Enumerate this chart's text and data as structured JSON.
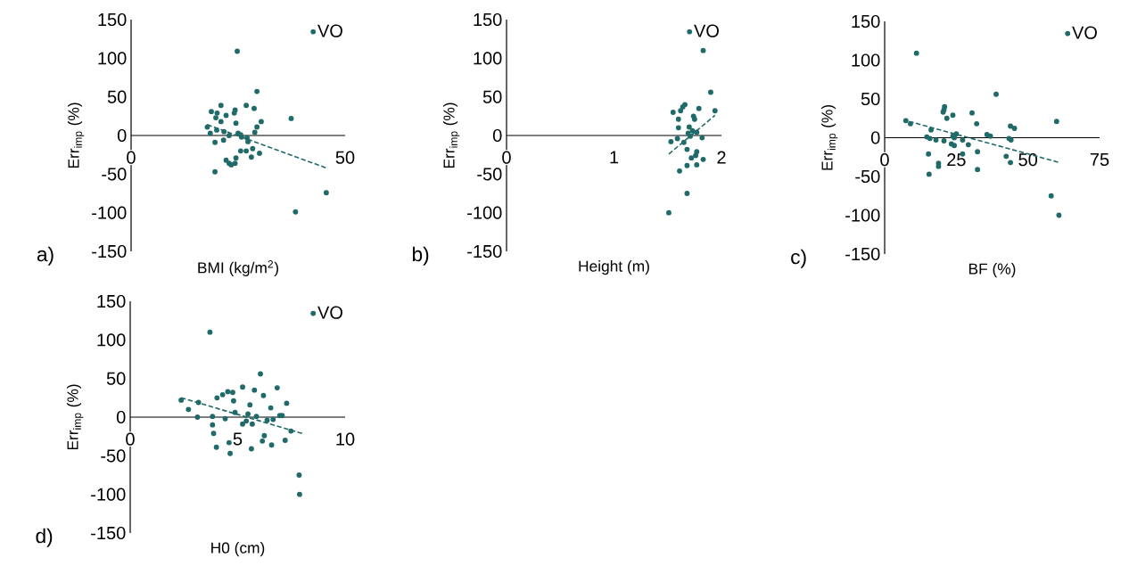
{
  "chart_data": [
    {
      "type": "scatter",
      "xlabel": "BMI (kg/m$^{2}$)",
      "ylabel": "Err$_{imp}$ (%)",
      "xlim": [
        0,
        50
      ],
      "xticks": [
        0,
        50
      ],
      "ylim": [
        -150,
        150
      ],
      "yticks": [
        -150,
        -100,
        -50,
        0,
        50,
        100,
        150
      ],
      "legend": "top right",
      "annotations": [
        "a)"
      ],
      "series": [
        {
          "name": "VO",
          "marker": "circle",
          "color": "#206a6a",
          "x": [
            24.8,
            29.4,
            18.75,
            20.1,
            21.0,
            22.2,
            24.1,
            24.3,
            19.8,
            21.0,
            24.5,
            26.9,
            28.75,
            30.4,
            29.4,
            37.4,
            17.8,
            18.5,
            20.0,
            21.7,
            22.9,
            25.0,
            25.6,
            25.8,
            27.1,
            28.9,
            21.6,
            19.6,
            27.3,
            25.6,
            26.9,
            28.4,
            30.0,
            28.1,
            24.5,
            22.2,
            22.9,
            23.4,
            24.3,
            19.6,
            45.6,
            38.4
          ],
          "values": [
            109,
            57,
            31,
            29,
            39,
            26,
            29,
            33,
            23,
            18,
            16,
            39,
            35,
            18,
            11,
            22,
            11,
            3,
            7,
            5,
            0,
            3,
            1,
            -2,
            -3,
            4,
            -6,
            -9,
            -8,
            -20,
            -20,
            -17,
            -23,
            -28,
            -29,
            -32,
            -36,
            -38,
            -36,
            -47,
            -74,
            -99
          ]
        },
        {
          "type": "line",
          "marker": "none",
          "line_style": "dashed",
          "color": "#206a6a",
          "x": [
            17.8,
            45.6
          ],
          "values": [
            14,
            -42
          ]
        }
      ]
    },
    {
      "type": "scatter",
      "xlabel": "Height (m)",
      "ylabel": "Err$_{imp}$ (%)",
      "xlim": [
        0,
        2
      ],
      "xticks": [
        0,
        1,
        2
      ],
      "ylim": [
        -150,
        150
      ],
      "yticks": [
        -150,
        -100,
        -50,
        0,
        50,
        100,
        150
      ],
      "legend": "top right",
      "annotations": [
        "b)"
      ],
      "series": [
        {
          "name": "VO",
          "marker": "circle",
          "color": "#206a6a",
          "x": [
            1.83,
            1.9,
            1.94,
            1.79,
            1.66,
            1.64,
            1.55,
            1.62,
            1.6,
            1.74,
            1.75,
            1.6,
            1.7,
            1.73,
            1.69,
            1.77,
            1.82,
            1.59,
            1.53,
            1.65,
            1.71,
            1.68,
            1.77,
            1.76,
            1.72,
            1.83,
            1.68,
            1.77,
            1.61,
            1.68,
            1.51
          ],
          "values": [
            110,
            56,
            32,
            35,
            40,
            37,
            30,
            32,
            21,
            25,
            21,
            10,
            11,
            6,
            3,
            4,
            -3,
            -4,
            -8,
            -9,
            -1,
            -18,
            -21,
            -26,
            -29,
            -31,
            -39,
            -38,
            -46,
            -75,
            -100
          ]
        },
        {
          "type": "line",
          "marker": "none",
          "line_style": "dashed",
          "color": "#206a6a",
          "x": [
            1.51,
            1.94
          ],
          "values": [
            -24,
            26
          ]
        }
      ]
    },
    {
      "type": "scatter",
      "xlabel": "BF (%)",
      "ylabel": "Err$_{imp}$ (%)",
      "xlim": [
        0,
        75
      ],
      "xticks": [
        0,
        25,
        50,
        75
      ],
      "ylim": [
        -150,
        150
      ],
      "yticks": [
        -150,
        -100,
        -50,
        0,
        50,
        100,
        150
      ],
      "legend": "top right",
      "annotations": [
        "c)"
      ],
      "series": [
        {
          "name": "VO",
          "marker": "circle",
          "color": "#206a6a",
          "x": [
            11.1,
            38.9,
            7.4,
            9.0,
            20.9,
            20.7,
            20.4,
            21.7,
            23.8,
            30.5,
            32.1,
            16.2,
            14.7,
            15.8,
            17.9,
            20.7,
            23.8,
            25.0,
            24.3,
            27.2,
            23.3,
            24.3,
            29.2,
            27.2,
            15.3,
            18.8,
            18.8,
            15.5,
            32.4,
            32.4,
            35.7,
            36.9,
            43.4,
            44.1,
            43.9,
            45.3,
            42.4,
            43.9,
            60.0,
            58.1,
            60.8
          ],
          "values": [
            109,
            56,
            22,
            18,
            40,
            36,
            33,
            25,
            29,
            32,
            18,
            10,
            1,
            -1,
            -3,
            -4,
            2,
            5,
            0,
            -3,
            -8,
            -10,
            -9,
            -21,
            -21,
            -33,
            -37,
            -47,
            -18,
            -41,
            4,
            2,
            -1,
            -3,
            15,
            12,
            -24,
            -32,
            21,
            -75,
            -100
          ]
        },
        {
          "type": "line",
          "marker": "none",
          "line_style": "dashed",
          "color": "#206a6a",
          "x": [
            8.5,
            61.0
          ],
          "values": [
            21,
            -32
          ]
        }
      ]
    },
    {
      "type": "scatter",
      "xlabel": "H0 (cm)",
      "ylabel": "Err$_{imp}$ (%)",
      "xlim": [
        0,
        10
      ],
      "xticks": [
        0,
        5,
        10
      ],
      "ylim": [
        -150,
        150
      ],
      "yticks": [
        -150,
        -100,
        -50,
        0,
        50,
        100,
        150
      ],
      "legend": "top right",
      "annotations": [
        "d)"
      ],
      "series": [
        {
          "name": "VO",
          "marker": "circle",
          "color": "#206a6a",
          "x": [
            3.71,
            6.06,
            2.37,
            2.71,
            3.18,
            3.13,
            4.04,
            4.3,
            4.54,
            4.77,
            4.81,
            5.23,
            5.78,
            6.2,
            6.84,
            7.28,
            5.57,
            6.54,
            4.88,
            4.42,
            3.83,
            3.83,
            3.88,
            4.01,
            4.6,
            4.65,
            5.48,
            5.4,
            5.23,
            5.68,
            5.87,
            6.37,
            6.65,
            6.96,
            7.07,
            6.24,
            6.15,
            5.64,
            6.58,
            7.21,
            7.48,
            7.86,
            7.88
          ],
          "values": [
            110,
            56,
            22,
            10,
            19,
            0,
            25,
            29,
            33,
            32,
            21,
            39,
            35,
            28,
            38,
            18,
            16,
            12,
            6,
            -2,
            1,
            -10,
            -21,
            -39,
            -33,
            -47,
            4,
            -5,
            -9,
            -9,
            1,
            -4,
            -3,
            2,
            2,
            -24,
            -31,
            -41,
            -36,
            -30,
            -18,
            -75,
            -100
          ]
        },
        {
          "type": "line",
          "marker": "none",
          "line_style": "dashed",
          "color": "#206a6a",
          "x": [
            2.37,
            8.0
          ],
          "values": [
            25,
            -21
          ]
        }
      ]
    }
  ]
}
